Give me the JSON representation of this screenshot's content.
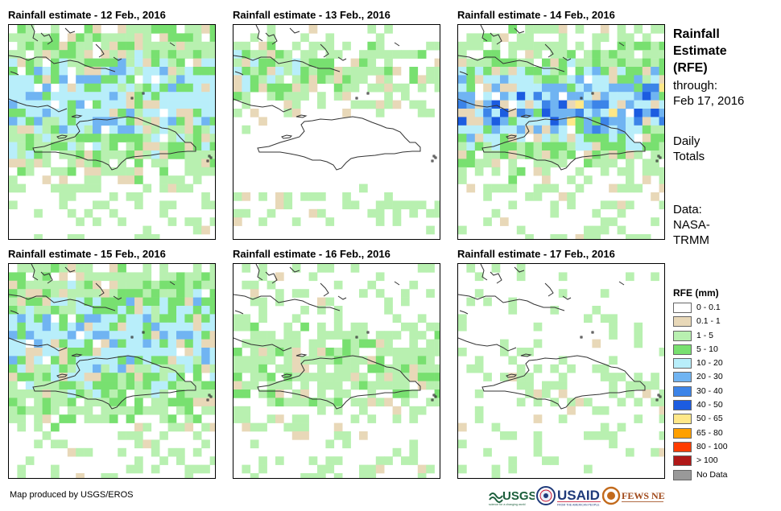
{
  "panels": [
    {
      "title": "Rainfall estimate - 12 Feb., 2016",
      "intensity": 3,
      "seed": 12
    },
    {
      "title": "Rainfall estimate - 13 Feb., 2016",
      "intensity": 2,
      "seed": 13
    },
    {
      "title": "Rainfall estimate - 14 Feb., 2016",
      "intensity": 4,
      "seed": 14
    },
    {
      "title": "Rainfall estimate - 15 Feb., 2016",
      "intensity": 3,
      "seed": 15
    },
    {
      "title": "Rainfall estimate - 16 Feb., 2016",
      "intensity": 1,
      "seed": 16
    },
    {
      "title": "Rainfall estimate - 17 Feb., 2016",
      "intensity": 0,
      "seed": 17
    }
  ],
  "sidebar": {
    "title_line1": "Rainfall",
    "title_line2": "Estimate",
    "title_line3": "(RFE)",
    "through_line1": "through:",
    "through_line2": "Feb 17, 2016",
    "totals_line1": "Daily",
    "totals_line2": "Totals",
    "data_line1": "Data:",
    "data_line2": "NASA-",
    "data_line3": "TRMM"
  },
  "legend": {
    "title": "RFE (mm)",
    "items": [
      {
        "label": "0 - 0.1",
        "color": "#ffffff"
      },
      {
        "label": "0.1 - 1",
        "color": "#e8d8b8"
      },
      {
        "label": "1 - 5",
        "color": "#b8f0b0"
      },
      {
        "label": "5 - 10",
        "color": "#78e070"
      },
      {
        "label": "10 - 20",
        "color": "#b8eefa"
      },
      {
        "label": "20 - 30",
        "color": "#70b4f2"
      },
      {
        "label": "30 - 40",
        "color": "#3c84e8"
      },
      {
        "label": "40 - 50",
        "color": "#1c5ce0"
      },
      {
        "label": "50 - 65",
        "color": "#ffe888"
      },
      {
        "label": "65 - 80",
        "color": "#ffa000"
      },
      {
        "label": "80 - 100",
        "color": "#ff3c00"
      },
      {
        "label": "> 100",
        "color": "#b01818"
      },
      {
        "label": "No Data",
        "color": "#999999"
      }
    ]
  },
  "footer": {
    "credit": "Map produced by USGS/EROS"
  },
  "logos": {
    "usgs": "USGS",
    "usgs_tagline": "science for a changing world",
    "usaid": "USAID",
    "usaid_tagline": "FROM THE AMERICAN PEOPLE",
    "fewsnet": "FEWS NET"
  }
}
